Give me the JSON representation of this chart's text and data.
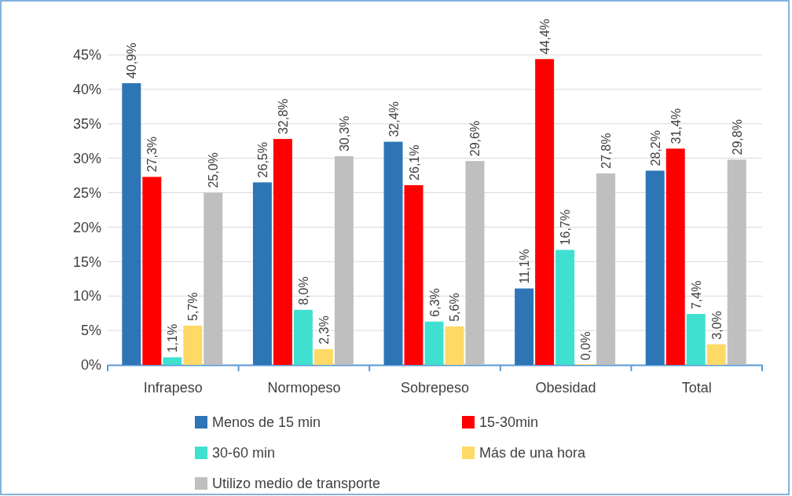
{
  "chart_data": {
    "type": "bar",
    "categories": [
      "Infrapeso",
      "Normopeso",
      "Sobrepeso",
      "Obesidad",
      "Total"
    ],
    "series": [
      {
        "name": "Menos de 15 min",
        "color": "#2e75b6",
        "values": [
          40.9,
          26.5,
          32.4,
          11.1,
          28.2
        ],
        "value_labels": [
          "40,9%",
          "26,5%",
          "32,4%",
          "11,1%",
          "28,2%"
        ]
      },
      {
        "name": "15-30min",
        "color": "#ff0000",
        "values": [
          27.3,
          32.8,
          26.1,
          44.4,
          31.4
        ],
        "value_labels": [
          "27,3%",
          "32,8%",
          "26,1%",
          "44,4%",
          "31,4%"
        ]
      },
      {
        "name": "30-60 min",
        "color": "#40e0d0",
        "values": [
          1.1,
          8.0,
          6.3,
          16.7,
          7.4
        ],
        "value_labels": [
          "1,1%",
          "8,0%",
          "6,3%",
          "16,7%",
          "7,4%"
        ]
      },
      {
        "name": "Más de una hora",
        "color": "#ffd966",
        "values": [
          5.7,
          2.3,
          5.6,
          0.0,
          3.0
        ],
        "value_labels": [
          "5,7%",
          "2,3%",
          "5,6%",
          "0,0%",
          "3,0%"
        ]
      },
      {
        "name": "Utilizo medio de transporte",
        "color": "#bfbfbf",
        "values": [
          25.0,
          30.3,
          29.6,
          27.8,
          29.8
        ],
        "value_labels": [
          "25,0%",
          "30,3%",
          "29,6%",
          "27,8%",
          "29,8%"
        ]
      }
    ],
    "ylim": [
      0,
      45
    ],
    "yticks": [
      {
        "value": 0,
        "label": "0%"
      },
      {
        "value": 5,
        "label": "5%"
      },
      {
        "value": 10,
        "label": "10%"
      },
      {
        "value": 15,
        "label": "15%"
      },
      {
        "value": 20,
        "label": "20%"
      },
      {
        "value": 25,
        "label": "25%"
      },
      {
        "value": 30,
        "label": "30%"
      },
      {
        "value": 35,
        "label": "35%"
      },
      {
        "value": 40,
        "label": "40%"
      },
      {
        "value": 45,
        "label": "45%"
      }
    ],
    "grid": "y",
    "legend": "bottom"
  }
}
